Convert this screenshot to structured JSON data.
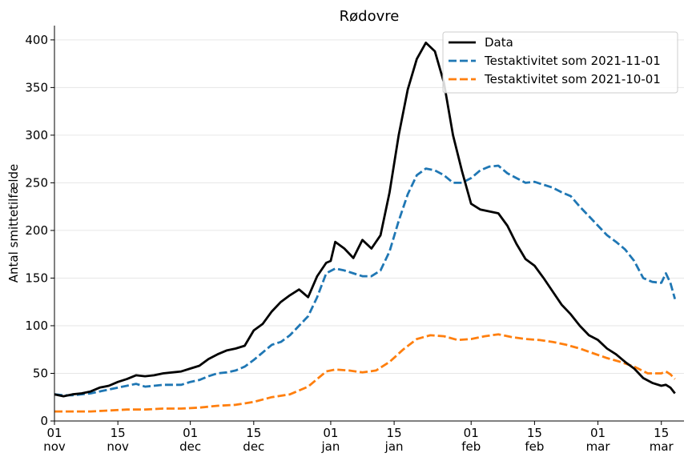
{
  "chart_data": {
    "type": "line",
    "title": "Rødovre",
    "xlabel": "",
    "ylabel": "Antal smittetilfælde",
    "ylim": [
      0,
      415
    ],
    "yticks": [
      0,
      50,
      100,
      150,
      200,
      250,
      300,
      350,
      400
    ],
    "xlim": [
      "2021-11-01",
      "2022-03-20"
    ],
    "xticks": [
      {
        "date": "2021-11-01",
        "day": "01",
        "month": "nov"
      },
      {
        "date": "2021-11-15",
        "day": "15",
        "month": "nov"
      },
      {
        "date": "2021-12-01",
        "day": "01",
        "month": "dec"
      },
      {
        "date": "2021-12-15",
        "day": "15",
        "month": "dec"
      },
      {
        "date": "2022-01-01",
        "day": "01",
        "month": "jan"
      },
      {
        "date": "2022-01-15",
        "day": "15",
        "month": "jan"
      },
      {
        "date": "2022-02-01",
        "day": "01",
        "month": "feb"
      },
      {
        "date": "2022-02-15",
        "day": "15",
        "month": "feb"
      },
      {
        "date": "2022-03-01",
        "day": "01",
        "month": "mar"
      },
      {
        "date": "2022-03-15",
        "day": "15",
        "month": "mar"
      }
    ],
    "grid": "horizontal",
    "legend_position": "top-right",
    "series": [
      {
        "name": "Data",
        "color": "#000000",
        "style": "solid",
        "points": [
          [
            "2021-11-01",
            28
          ],
          [
            "2021-11-03",
            26
          ],
          [
            "2021-11-05",
            28
          ],
          [
            "2021-11-07",
            29
          ],
          [
            "2021-11-09",
            31
          ],
          [
            "2021-11-11",
            35
          ],
          [
            "2021-11-13",
            37
          ],
          [
            "2021-11-15",
            41
          ],
          [
            "2021-11-17",
            44
          ],
          [
            "2021-11-19",
            48
          ],
          [
            "2021-11-21",
            47
          ],
          [
            "2021-11-23",
            48
          ],
          [
            "2021-11-25",
            50
          ],
          [
            "2021-11-27",
            51
          ],
          [
            "2021-11-29",
            52
          ],
          [
            "2021-12-01",
            55
          ],
          [
            "2021-12-03",
            58
          ],
          [
            "2021-12-05",
            65
          ],
          [
            "2021-12-07",
            70
          ],
          [
            "2021-12-09",
            74
          ],
          [
            "2021-12-11",
            76
          ],
          [
            "2021-12-13",
            79
          ],
          [
            "2021-12-15",
            95
          ],
          [
            "2021-12-17",
            102
          ],
          [
            "2021-12-19",
            115
          ],
          [
            "2021-12-21",
            125
          ],
          [
            "2021-12-23",
            132
          ],
          [
            "2021-12-25",
            138
          ],
          [
            "2021-12-27",
            130
          ],
          [
            "2021-12-29",
            152
          ],
          [
            "2021-12-31",
            166
          ],
          [
            "2022-01-01",
            168
          ],
          [
            "2022-01-02",
            188
          ],
          [
            "2022-01-04",
            181
          ],
          [
            "2022-01-06",
            171
          ],
          [
            "2022-01-08",
            190
          ],
          [
            "2022-01-10",
            181
          ],
          [
            "2022-01-12",
            195
          ],
          [
            "2022-01-14",
            240
          ],
          [
            "2022-01-16",
            300
          ],
          [
            "2022-01-18",
            348
          ],
          [
            "2022-01-20",
            380
          ],
          [
            "2022-01-22",
            397
          ],
          [
            "2022-01-24",
            388
          ],
          [
            "2022-01-26",
            355
          ],
          [
            "2022-01-28",
            300
          ],
          [
            "2022-01-30",
            262
          ],
          [
            "2022-02-01",
            228
          ],
          [
            "2022-02-03",
            222
          ],
          [
            "2022-02-05",
            220
          ],
          [
            "2022-02-07",
            218
          ],
          [
            "2022-02-09",
            205
          ],
          [
            "2022-02-11",
            186
          ],
          [
            "2022-02-13",
            170
          ],
          [
            "2022-02-15",
            163
          ],
          [
            "2022-02-17",
            150
          ],
          [
            "2022-02-19",
            136
          ],
          [
            "2022-02-21",
            122
          ],
          [
            "2022-02-23",
            112
          ],
          [
            "2022-02-25",
            100
          ],
          [
            "2022-02-27",
            90
          ],
          [
            "2022-03-01",
            85
          ],
          [
            "2022-03-03",
            76
          ],
          [
            "2022-03-05",
            70
          ],
          [
            "2022-03-07",
            62
          ],
          [
            "2022-03-09",
            55
          ],
          [
            "2022-03-11",
            45
          ],
          [
            "2022-03-13",
            40
          ],
          [
            "2022-03-15",
            37
          ],
          [
            "2022-03-16",
            38
          ],
          [
            "2022-03-17",
            35
          ],
          [
            "2022-03-18",
            29
          ]
        ]
      },
      {
        "name": "Testaktivitet som 2021-11-01",
        "color": "#1f77b4",
        "style": "dashed",
        "points": [
          [
            "2021-11-01",
            28
          ],
          [
            "2021-11-03",
            27
          ],
          [
            "2021-11-05",
            27
          ],
          [
            "2021-11-07",
            28
          ],
          [
            "2021-11-09",
            29
          ],
          [
            "2021-11-11",
            31
          ],
          [
            "2021-11-13",
            33
          ],
          [
            "2021-11-15",
            35
          ],
          [
            "2021-11-17",
            37
          ],
          [
            "2021-11-19",
            39
          ],
          [
            "2021-11-21",
            36
          ],
          [
            "2021-11-23",
            37
          ],
          [
            "2021-11-25",
            38
          ],
          [
            "2021-11-27",
            38
          ],
          [
            "2021-11-29",
            38
          ],
          [
            "2021-12-01",
            41
          ],
          [
            "2021-12-03",
            43
          ],
          [
            "2021-12-05",
            47
          ],
          [
            "2021-12-07",
            50
          ],
          [
            "2021-12-09",
            51
          ],
          [
            "2021-12-11",
            53
          ],
          [
            "2021-12-13",
            57
          ],
          [
            "2021-12-15",
            64
          ],
          [
            "2021-12-17",
            72
          ],
          [
            "2021-12-19",
            80
          ],
          [
            "2021-12-21",
            83
          ],
          [
            "2021-12-23",
            90
          ],
          [
            "2021-12-25",
            100
          ],
          [
            "2021-12-27",
            110
          ],
          [
            "2021-12-29",
            130
          ],
          [
            "2021-12-31",
            155
          ],
          [
            "2022-01-02",
            160
          ],
          [
            "2022-01-04",
            158
          ],
          [
            "2022-01-06",
            155
          ],
          [
            "2022-01-08",
            152
          ],
          [
            "2022-01-10",
            152
          ],
          [
            "2022-01-12",
            158
          ],
          [
            "2022-01-14",
            178
          ],
          [
            "2022-01-16",
            210
          ],
          [
            "2022-01-18",
            238
          ],
          [
            "2022-01-20",
            258
          ],
          [
            "2022-01-22",
            265
          ],
          [
            "2022-01-24",
            263
          ],
          [
            "2022-01-26",
            258
          ],
          [
            "2022-01-28",
            250
          ],
          [
            "2022-01-30",
            250
          ],
          [
            "2022-02-01",
            255
          ],
          [
            "2022-02-03",
            263
          ],
          [
            "2022-02-05",
            267
          ],
          [
            "2022-02-07",
            268
          ],
          [
            "2022-02-09",
            260
          ],
          [
            "2022-02-11",
            255
          ],
          [
            "2022-02-13",
            250
          ],
          [
            "2022-02-15",
            251
          ],
          [
            "2022-02-17",
            248
          ],
          [
            "2022-02-19",
            245
          ],
          [
            "2022-02-21",
            240
          ],
          [
            "2022-02-23",
            236
          ],
          [
            "2022-02-25",
            225
          ],
          [
            "2022-02-27",
            215
          ],
          [
            "2022-03-01",
            205
          ],
          [
            "2022-03-03",
            195
          ],
          [
            "2022-03-05",
            188
          ],
          [
            "2022-03-07",
            180
          ],
          [
            "2022-03-09",
            168
          ],
          [
            "2022-03-11",
            150
          ],
          [
            "2022-03-13",
            146
          ],
          [
            "2022-03-15",
            145
          ],
          [
            "2022-03-16",
            155
          ],
          [
            "2022-03-17",
            145
          ],
          [
            "2022-03-18",
            128
          ]
        ]
      },
      {
        "name": "Testaktivitet som 2021-10-01",
        "color": "#ff7f0e",
        "style": "dashed",
        "points": [
          [
            "2021-11-01",
            10
          ],
          [
            "2021-11-05",
            10
          ],
          [
            "2021-11-09",
            10
          ],
          [
            "2021-11-13",
            11
          ],
          [
            "2021-11-17",
            12
          ],
          [
            "2021-11-21",
            12
          ],
          [
            "2021-11-25",
            13
          ],
          [
            "2021-11-29",
            13
          ],
          [
            "2021-12-03",
            14
          ],
          [
            "2021-12-07",
            16
          ],
          [
            "2021-12-11",
            17
          ],
          [
            "2021-12-15",
            20
          ],
          [
            "2021-12-19",
            25
          ],
          [
            "2021-12-23",
            28
          ],
          [
            "2021-12-27",
            36
          ],
          [
            "2021-12-29",
            44
          ],
          [
            "2021-12-31",
            52
          ],
          [
            "2022-01-02",
            54
          ],
          [
            "2022-01-05",
            53
          ],
          [
            "2022-01-08",
            51
          ],
          [
            "2022-01-11",
            53
          ],
          [
            "2022-01-14",
            62
          ],
          [
            "2022-01-17",
            75
          ],
          [
            "2022-01-20",
            86
          ],
          [
            "2022-01-23",
            90
          ],
          [
            "2022-01-26",
            89
          ],
          [
            "2022-01-29",
            85
          ],
          [
            "2022-02-01",
            86
          ],
          [
            "2022-02-04",
            89
          ],
          [
            "2022-02-07",
            91
          ],
          [
            "2022-02-10",
            88
          ],
          [
            "2022-02-13",
            86
          ],
          [
            "2022-02-16",
            85
          ],
          [
            "2022-02-19",
            83
          ],
          [
            "2022-02-22",
            80
          ],
          [
            "2022-02-25",
            76
          ],
          [
            "2022-02-28",
            71
          ],
          [
            "2022-03-03",
            66
          ],
          [
            "2022-03-06",
            62
          ],
          [
            "2022-03-09",
            57
          ],
          [
            "2022-03-12",
            50
          ],
          [
            "2022-03-15",
            50
          ],
          [
            "2022-03-16",
            52
          ],
          [
            "2022-03-17",
            49
          ],
          [
            "2022-03-18",
            44
          ]
        ]
      }
    ]
  }
}
